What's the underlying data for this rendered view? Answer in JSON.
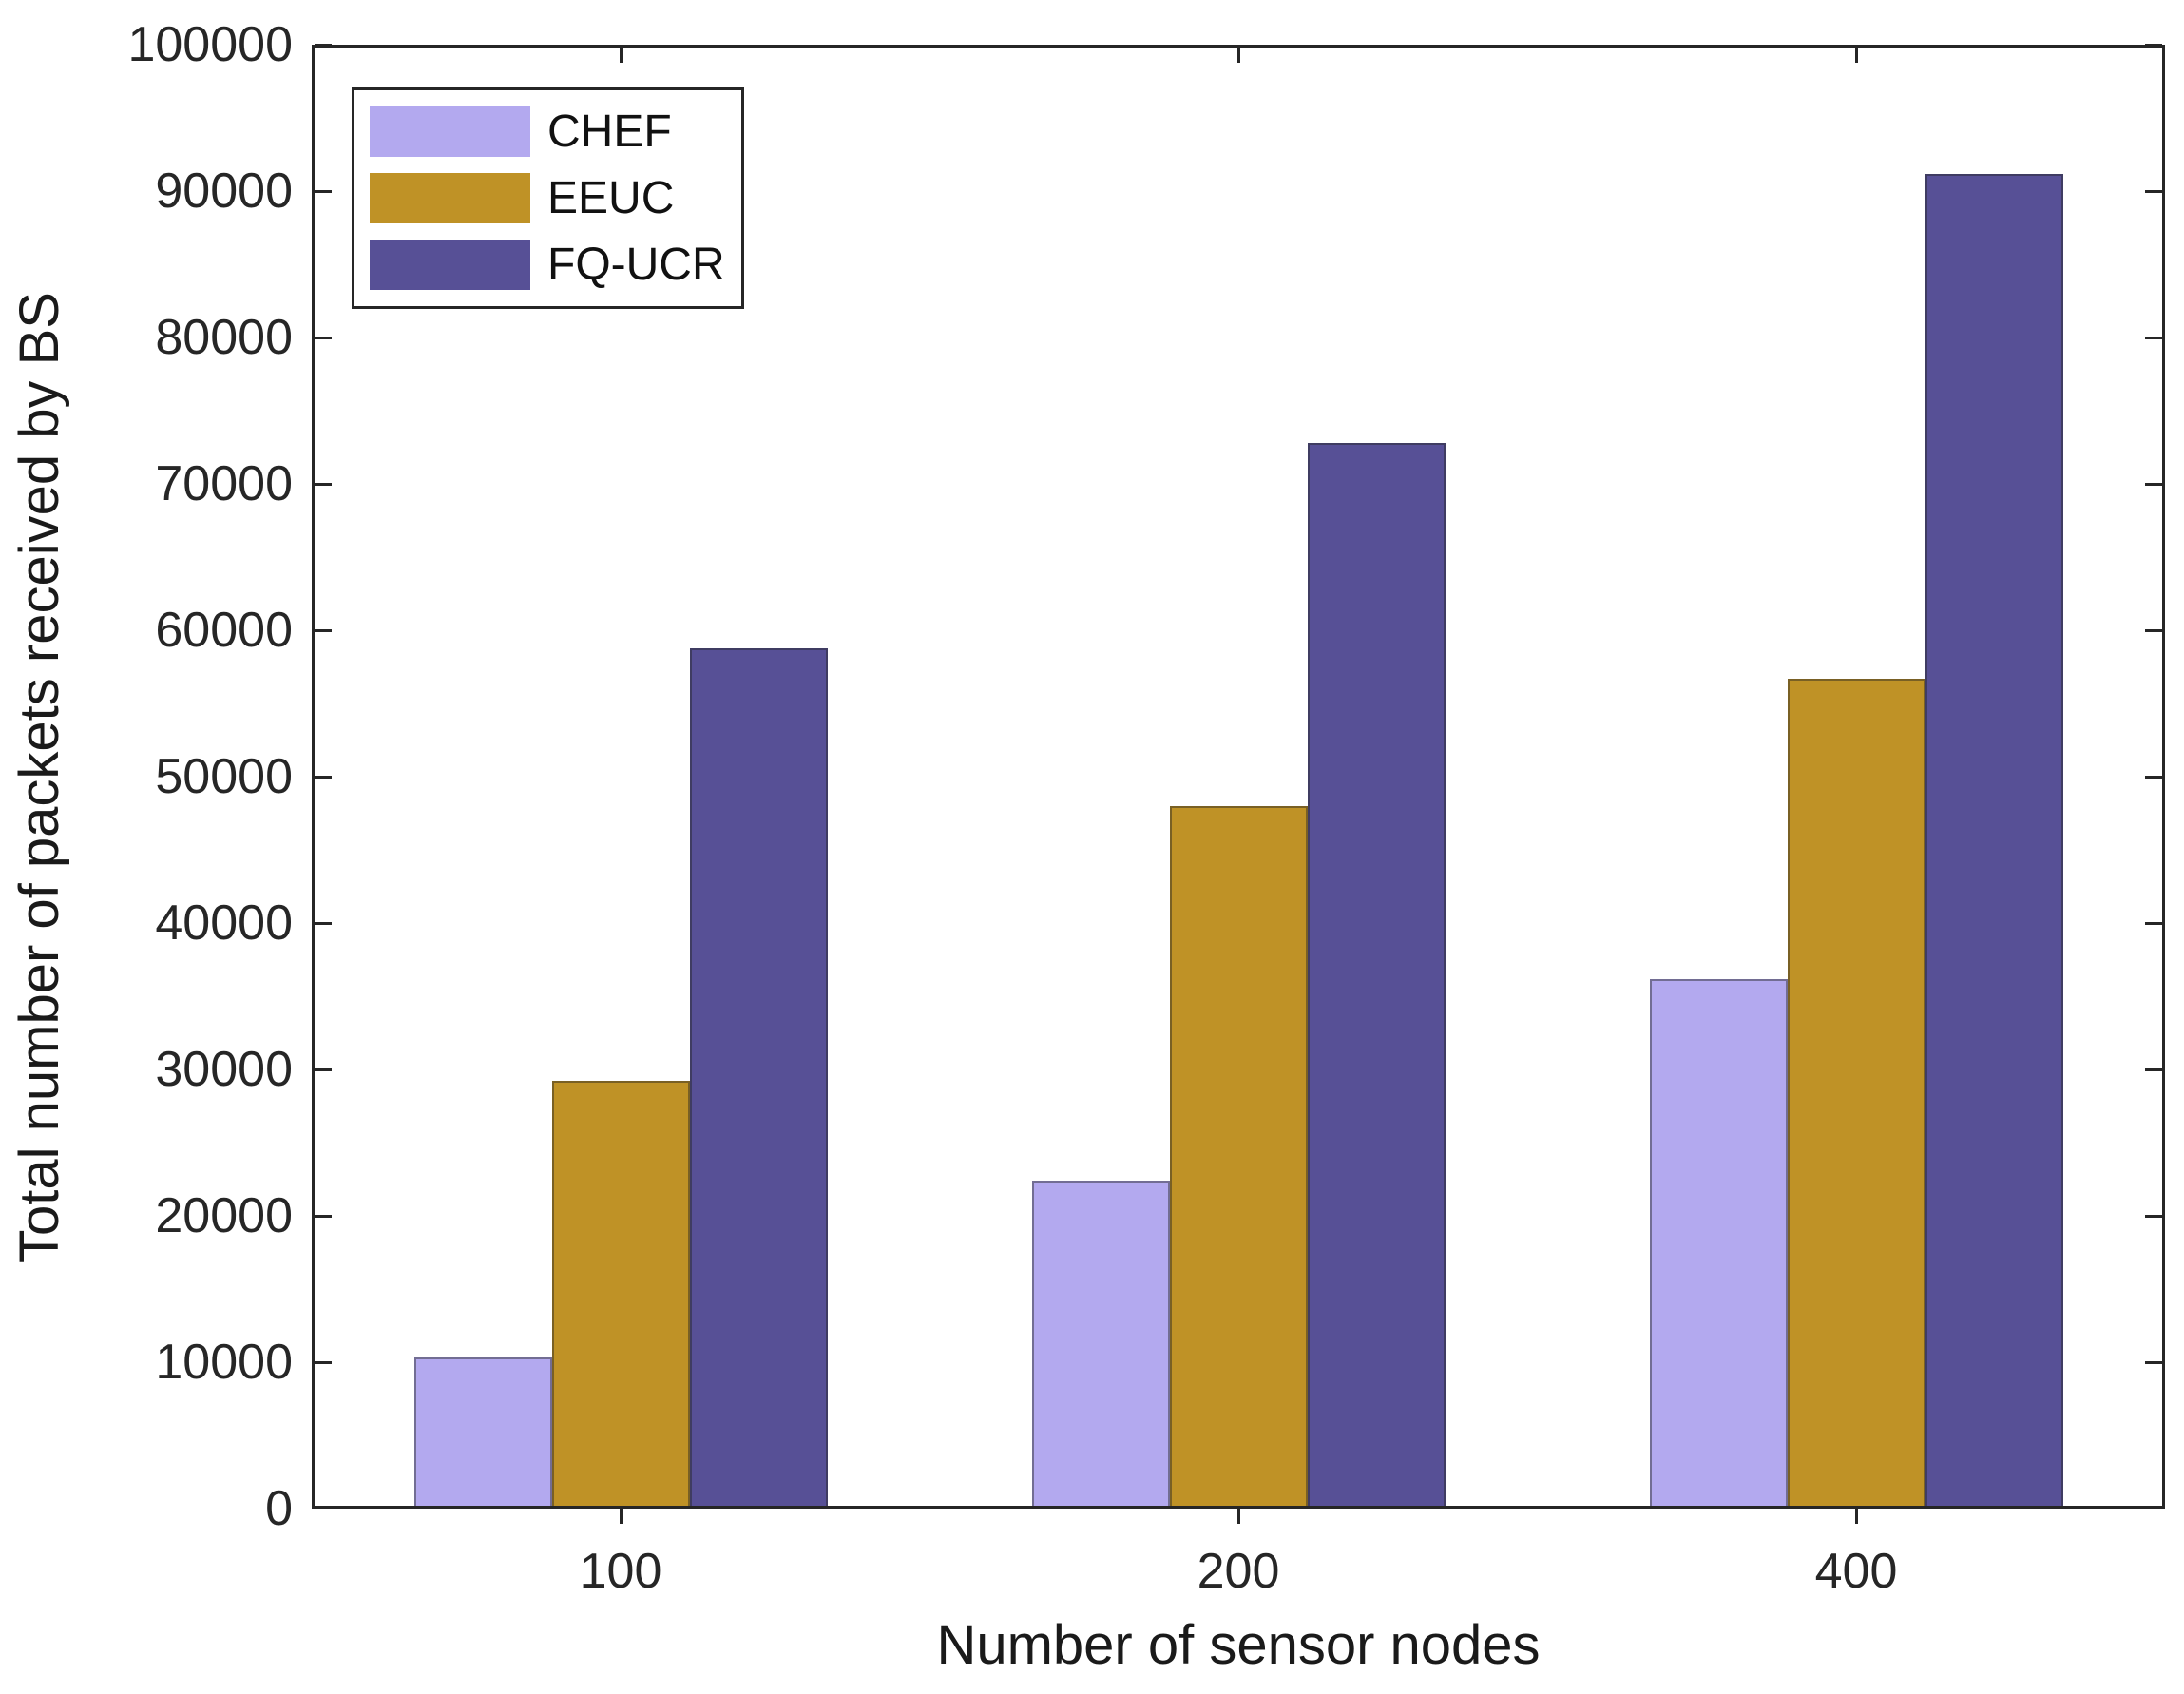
{
  "figure": {
    "background": "#ffffff",
    "axis_color": "#262626",
    "tick_label_color": "#262626"
  },
  "chart_data": {
    "type": "bar",
    "title": "",
    "xlabel": "Number of sensor nodes",
    "ylabel": "Total number of packets received by BS",
    "categories": [
      "100",
      "200",
      "400"
    ],
    "series": [
      {
        "name": "CHEF",
        "color": "#b3a9ef",
        "values": [
          10100,
          22200,
          36000
        ]
      },
      {
        "name": "EEUC",
        "color": "#bf9226",
        "values": [
          29000,
          47800,
          56500
        ]
      },
      {
        "name": "FQ-UCR",
        "color": "#575096",
        "values": [
          58600,
          72600,
          91000
        ]
      }
    ],
    "ylim": [
      0,
      100000
    ],
    "ytick_step": 10000,
    "ytick_labels": [
      "0",
      "10000",
      "20000",
      "30000",
      "40000",
      "50000",
      "60000",
      "70000",
      "80000",
      "90000",
      "100000"
    ],
    "grid": false,
    "legend_position": "top-left-inside",
    "legend_entries": [
      "CHEF",
      "EEUC",
      "FQ-UCR"
    ]
  }
}
